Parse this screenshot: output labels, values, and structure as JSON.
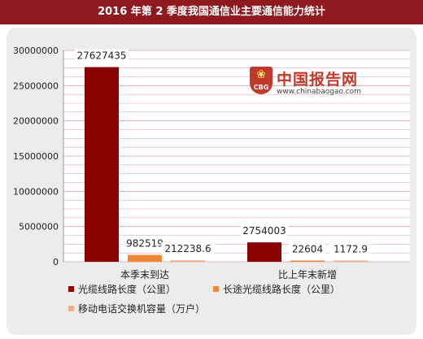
{
  "title": "2016 年第 2 季度我国通信业主要通信能力统计",
  "logo": {
    "badge_text": "CBG",
    "name": "中国报告网",
    "url": "www.chinabaogao.com"
  },
  "colors": {
    "title_bar": "#8e1a1f",
    "series1": "#8b0000",
    "series2": "#f0883a",
    "series3": "#f5b08a",
    "gridline": "#c98b8b"
  },
  "chart_data": {
    "type": "bar",
    "categories": [
      "本季末到达",
      "比上年末新增"
    ],
    "series": [
      {
        "name": "光缆线路长度（公里）",
        "values": [
          27627435,
          2754003
        ],
        "labels": [
          "27627435",
          "2754003"
        ]
      },
      {
        "name": "长途光缆线路长度（公里）",
        "values": [
          982519,
          22604
        ],
        "labels": [
          "982519",
          "22604"
        ]
      },
      {
        "name": "移动电话交换机容量（万户）",
        "values": [
          212238.6,
          1172.9
        ],
        "labels": [
          "212238.6",
          "1172.9"
        ]
      }
    ],
    "ylim": [
      0,
      30000000
    ],
    "yticks": [
      "0",
      "5000000",
      "10000000",
      "15000000",
      "20000000",
      "25000000",
      "30000000"
    ],
    "grid": true,
    "legend_position": "bottom"
  }
}
